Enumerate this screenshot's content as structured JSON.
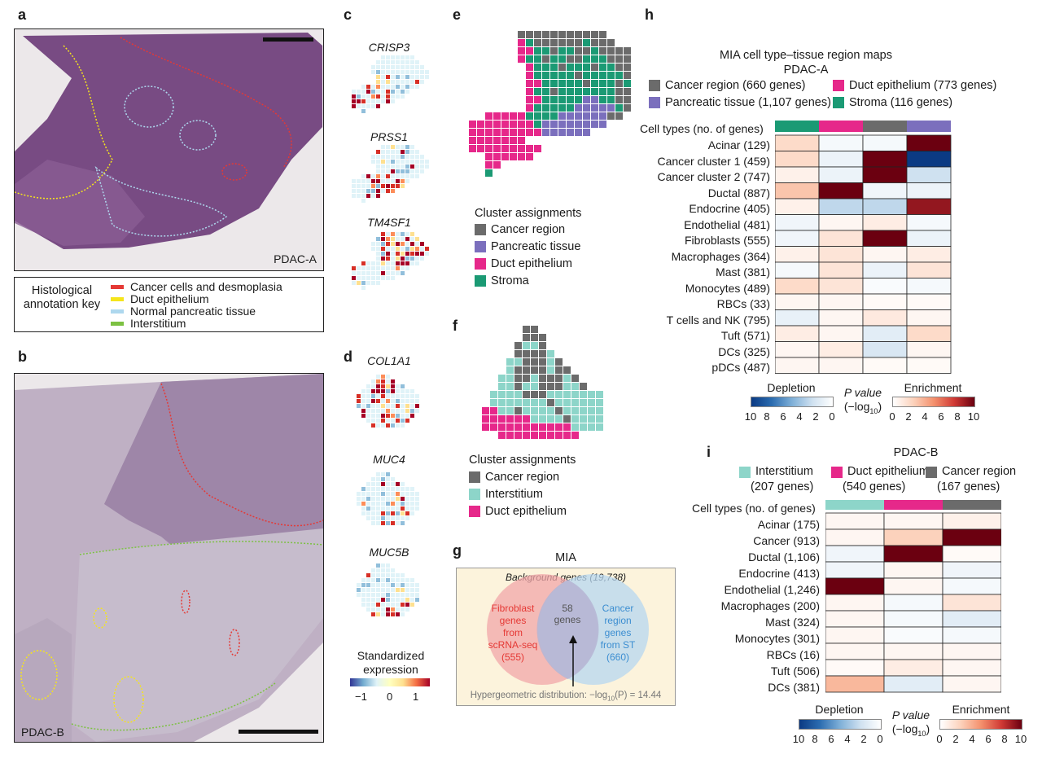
{
  "panels": {
    "a": "a",
    "b": "b",
    "c": "c",
    "d": "d",
    "e": "e",
    "f": "f",
    "g": "g",
    "h": "h",
    "i": "i"
  },
  "panel_a": {
    "sample_label": "PDAC-A",
    "key_title": "Histological annotation key",
    "key_items": [
      {
        "label": "Cancer cells and desmoplasia",
        "color": "#e53935"
      },
      {
        "label": "Duct epithelium",
        "color": "#f5e51b"
      },
      {
        "label": "Normal pancreatic tissue",
        "color": "#aed8ee"
      },
      {
        "label": "Interstitium",
        "color": "#7cc142"
      }
    ]
  },
  "panel_b": {
    "sample_label": "PDAC-B"
  },
  "panel_c": {
    "genes": [
      "CRISP3",
      "PRSS1",
      "TM4SF1"
    ]
  },
  "panel_d": {
    "genes": [
      "COL1A1",
      "MUC4",
      "MUC5B"
    ],
    "colorbar_title": "Standardized expression",
    "colorbar_ticks": [
      "−1",
      "0",
      "1"
    ]
  },
  "panel_e": {
    "legend_title": "Cluster assignments",
    "items": [
      {
        "label": "Cancer region",
        "color": "#6b6b6b"
      },
      {
        "label": "Pancreatic tissue",
        "color": "#7b6fbd"
      },
      {
        "label": "Duct epithelium",
        "color": "#e6288a"
      },
      {
        "label": "Stroma",
        "color": "#1b9a74"
      }
    ]
  },
  "panel_f": {
    "legend_title": "Cluster assignments",
    "items": [
      {
        "label": "Cancer region",
        "color": "#6b6b6b"
      },
      {
        "label": "Interstitium",
        "color": "#8dd5c9"
      },
      {
        "label": "Duct epithelium",
        "color": "#e6288a"
      }
    ]
  },
  "panel_g": {
    "title": "MIA",
    "background": "Background genes (19,738)",
    "left_set": [
      "Fibroblast",
      "genes",
      "from",
      "scRNA-seq",
      "(555)"
    ],
    "right_set": [
      "Cancer",
      "region",
      "genes",
      "from ST",
      "(660)"
    ],
    "overlap": [
      "58",
      "genes"
    ],
    "footer": "Hypergeometric distribution:  −log",
    "footer_sub": "10",
    "footer_end": "(P) = 14.44"
  },
  "panel_h": {
    "title": "MIA cell type–tissue region maps",
    "subtitle": "PDAC-A",
    "legend": [
      {
        "label": "Cancer region (660 genes)",
        "color": "#6b6b6b"
      },
      {
        "label": "Duct epithelium (773 genes)",
        "color": "#e6288a"
      },
      {
        "label": "Pancreatic tissue (1,107 genes)",
        "color": "#7b6fbd"
      },
      {
        "label": "Stroma (116 genes)",
        "color": "#1b9a74"
      }
    ],
    "header_label": "Cell types (no. of genes)",
    "column_colors": [
      "#1b9a74",
      "#e6288a",
      "#6b6b6b",
      "#7b6fbd"
    ],
    "rows": [
      "Acinar (129)",
      "Cancer cluster 1 (459)",
      "Cancer cluster 2 (747)",
      "Ductal (887)",
      "Endocrine (405)",
      "Endothelial (481)",
      "Fibroblasts (555)",
      "Macrophages (364)",
      "Mast (381)",
      "Monocytes (489)",
      "RBCs (33)",
      "T cells and NK (795)",
      "Tuft (571)",
      "DCs (325)",
      "pDCs (487)"
    ],
    "values": [
      [
        2,
        -0.5,
        -0.5,
        10
      ],
      [
        2,
        -1,
        10,
        -10
      ],
      [
        0.8,
        -1,
        10,
        -2.5
      ],
      [
        3,
        10,
        -0.8,
        -1
      ],
      [
        0.8,
        -3,
        -3,
        9
      ],
      [
        -0.8,
        0.5,
        1,
        -0.5
      ],
      [
        -0.8,
        1.5,
        10,
        -1
      ],
      [
        0.8,
        1.5,
        0.5,
        1
      ],
      [
        -0.5,
        1.5,
        -1,
        1.5
      ],
      [
        2,
        1.5,
        -0.3,
        -0.5
      ],
      [
        0.5,
        0.5,
        0.3,
        0.3
      ],
      [
        -1.2,
        0.5,
        1.2,
        0.5
      ],
      [
        1,
        0.5,
        -1.5,
        2
      ],
      [
        0.5,
        1,
        -2,
        0.5
      ],
      [
        0.5,
        0.5,
        0.3,
        0.3
      ]
    ],
    "depletion_label": "Depletion",
    "enrichment_label": "Enrichment",
    "pvalue_label": "P value",
    "pvalue_sub": "(−log",
    "pvalue_subscript": "10",
    "pvalue_end": ")",
    "depletion_ticks": [
      "10",
      "8",
      "6",
      "4",
      "2",
      "0"
    ],
    "enrichment_ticks": [
      "0",
      "2",
      "4",
      "6",
      "8",
      "10"
    ]
  },
  "panel_i": {
    "subtitle": "PDAC-B",
    "legend": [
      {
        "label": "Interstitium",
        "sub": "(207 genes)",
        "color": "#8dd5c9"
      },
      {
        "label": "Duct epithelium",
        "sub": "(540 genes)",
        "color": "#e6288a"
      },
      {
        "label": "Cancer region",
        "sub": "(167 genes)",
        "color": "#6b6b6b"
      }
    ],
    "header_label": "Cell types (no. of genes)",
    "column_colors": [
      "#8dd5c9",
      "#e6288a",
      "#6b6b6b"
    ],
    "rows": [
      "Acinar (175)",
      "Cancer (913)",
      "Ductal (1,106)",
      "Endocrine (413)",
      "Endothelial (1,246)",
      "Macrophages (200)",
      "Mast (324)",
      "Monocytes (301)",
      "RBCs (16)",
      "Tuft (506)",
      "DCs (381)"
    ],
    "values": [
      [
        0.5,
        0.5,
        0.8
      ],
      [
        0.5,
        2.5,
        10
      ],
      [
        -0.8,
        10,
        0.3
      ],
      [
        -0.8,
        0.5,
        -0.8
      ],
      [
        10,
        0.5,
        -0.5
      ],
      [
        0.5,
        -0.5,
        1.5
      ],
      [
        0.5,
        -0.5,
        -1.5
      ],
      [
        0.5,
        -0.3,
        -0.5
      ],
      [
        0.5,
        0.5,
        0.5
      ],
      [
        0.3,
        1,
        0.5
      ],
      [
        3.5,
        -1.5,
        0.5
      ]
    ],
    "depletion_label": "Depletion",
    "enrichment_label": "Enrichment",
    "pvalue_label": "P value",
    "pvalue_sub": "(−log",
    "pvalue_subscript": "10",
    "pvalue_end": ")",
    "depletion_ticks": [
      "10",
      "8",
      "6",
      "4",
      "2",
      "0"
    ],
    "enrichment_ticks": [
      "0",
      "2",
      "4",
      "6",
      "8",
      "10"
    ]
  }
}
